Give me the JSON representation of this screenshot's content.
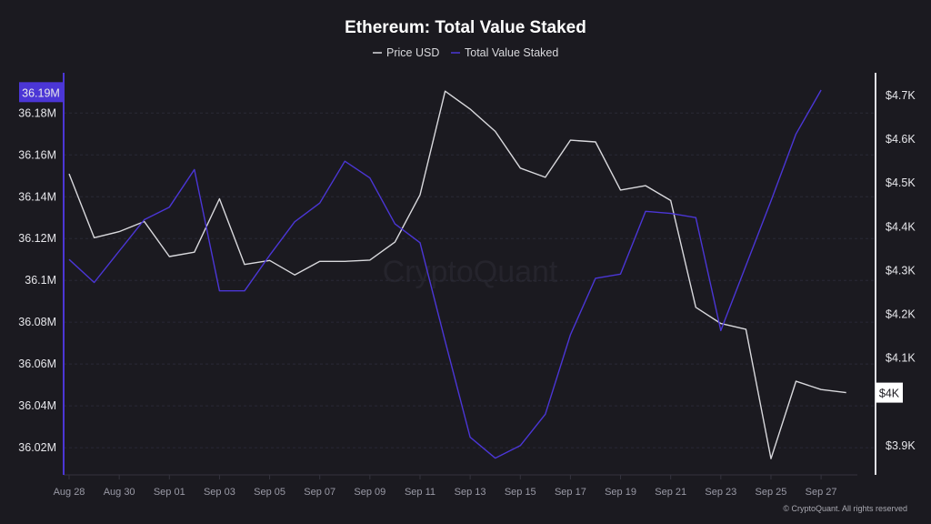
{
  "chart_data": {
    "type": "line",
    "title": "Ethereum: Total Value Staked",
    "legend": {
      "placement": "top-center",
      "entries": [
        "Price USD",
        "Total Value Staked"
      ]
    },
    "x": [
      "Aug 28",
      "Aug 29",
      "Aug 30",
      "Aug 31",
      "Sep 01",
      "Sep 02",
      "Sep 03",
      "Sep 04",
      "Sep 05",
      "Sep 06",
      "Sep 07",
      "Sep 08",
      "Sep 09",
      "Sep 10",
      "Sep 11",
      "Sep 12",
      "Sep 13",
      "Sep 14",
      "Sep 15",
      "Sep 16",
      "Sep 17",
      "Sep 18",
      "Sep 19",
      "Sep 20",
      "Sep 21",
      "Sep 22",
      "Sep 23",
      "Sep 24",
      "Sep 25",
      "Sep 26",
      "Sep 27",
      "Sep 28"
    ],
    "x_tick_labels": [
      "Aug 28",
      "Aug 30",
      "Sep 01",
      "Sep 03",
      "Sep 05",
      "Sep 07",
      "Sep 09",
      "Sep 11",
      "Sep 13",
      "Sep 15",
      "Sep 17",
      "Sep 19",
      "Sep 21",
      "Sep 23",
      "Sep 25",
      "Sep 27"
    ],
    "series": [
      {
        "name": "Price USD",
        "axis": "right",
        "color": "#d9d9dd",
        "unit": "K USD",
        "values": [
          4.521,
          4.375,
          4.389,
          4.412,
          4.332,
          4.342,
          4.464,
          4.314,
          4.323,
          4.29,
          4.321,
          4.321,
          4.324,
          4.365,
          4.473,
          4.71,
          4.669,
          4.618,
          4.534,
          4.513,
          4.598,
          4.594,
          4.484,
          4.494,
          4.46,
          4.216,
          4.179,
          4.166,
          3.87,
          4.047,
          4.028,
          4.021
        ]
      },
      {
        "name": "Total Value Staked",
        "axis": "left",
        "color": "#4b36d6",
        "unit": "M",
        "values": [
          36.11,
          36.099,
          36.114,
          36.129,
          36.135,
          36.153,
          36.095,
          36.095,
          36.112,
          36.128,
          36.137,
          36.157,
          36.149,
          36.127,
          36.118,
          36.071,
          36.025,
          36.015,
          36.021,
          36.036,
          36.074,
          36.101,
          36.103,
          36.133,
          36.132,
          36.13,
          36.076,
          36.107,
          36.138,
          36.17,
          36.191,
          null
        ]
      }
    ],
    "left_axis": {
      "range": [
        36.0,
        36.19
      ],
      "ticks": [
        "36.02M",
        "36.04M",
        "36.06M",
        "36.08M",
        "36.1M",
        "36.12M",
        "36.14M",
        "36.16M",
        "36.18M"
      ],
      "tick_values": [
        36.02,
        36.04,
        36.06,
        36.08,
        36.1,
        36.12,
        36.14,
        36.16,
        36.18
      ],
      "highlight_label": "36.19M",
      "highlight_value": 36.19
    },
    "right_axis": {
      "range": [
        3.85,
        4.75
      ],
      "ticks": [
        "$3.9K",
        "$4.1K",
        "$4.2K",
        "$4.3K",
        "$4.4K",
        "$4.5K",
        "$4.6K",
        "$4.7K"
      ],
      "tick_values": [
        3.9,
        4.1,
        4.2,
        4.3,
        4.4,
        4.5,
        4.6,
        4.7
      ],
      "highlight_label": "$4K",
      "highlight_value": 4.021
    },
    "grid": true
  },
  "watermark": "CryptoQuant",
  "footer": "© CryptoQuant. All rights reserved",
  "colors": {
    "background": "#1b1a20",
    "accent": "#4b36d6",
    "price": "#d9d9dd"
  }
}
